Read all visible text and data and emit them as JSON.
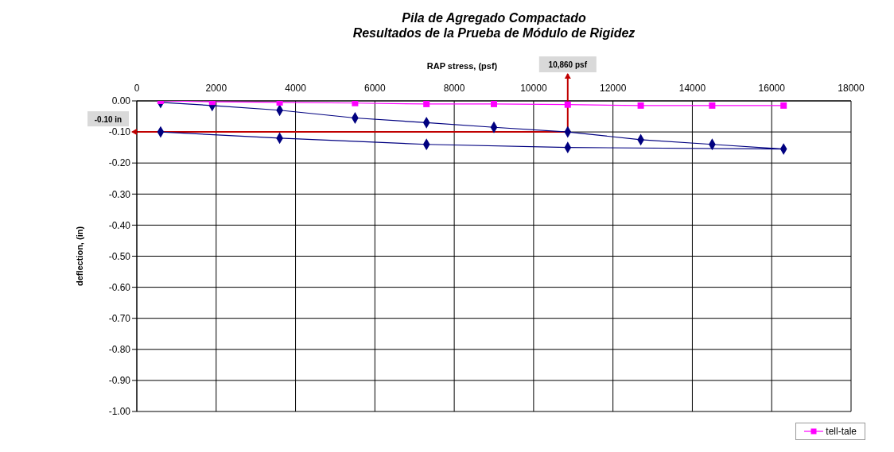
{
  "chart_data": {
    "type": "line",
    "title": "Pila de Agregado Compactado\nResultados de la Prueba de Módulo de Rigidez",
    "xlabel": "RAP stress, (psf)",
    "ylabel": "deflection, (in)",
    "series": [
      {
        "color": "#000080",
        "marker": "diamond",
        "x": [
          600,
          1900,
          3600,
          5500,
          7300,
          9000,
          10860,
          12700,
          14500,
          16300,
          10860,
          7300,
          3600,
          600
        ],
        "values": [
          -0.005,
          -0.015,
          -0.03,
          -0.055,
          -0.07,
          -0.085,
          -0.1,
          -0.125,
          -0.14,
          -0.155,
          -0.15,
          -0.14,
          -0.12,
          -0.1
        ]
      },
      {
        "name": "tell-tale",
        "color": "#ff00ff",
        "marker": "square",
        "x": [
          600,
          1900,
          3600,
          5500,
          7300,
          9000,
          10860,
          12700,
          14500,
          16300
        ],
        "values": [
          0,
          -0.003,
          -0.005,
          -0.007,
          -0.01,
          -0.01,
          -0.012,
          -0.015,
          -0.015,
          -0.015
        ]
      }
    ],
    "xlim": [
      0,
      18000
    ],
    "xticks": [
      0,
      2000,
      4000,
      6000,
      8000,
      10000,
      12000,
      14000,
      16000,
      18000
    ],
    "ylim": [
      -1,
      0
    ],
    "yticks": [
      {
        "value": 0,
        "label": "0.00"
      },
      {
        "value": -0.1,
        "label": "-0.10"
      },
      {
        "value": -0.2,
        "label": "-0.20"
      },
      {
        "value": -0.3,
        "label": "-0.30"
      },
      {
        "value": -0.4,
        "label": "-0.40"
      },
      {
        "value": -0.5,
        "label": "-0.50"
      },
      {
        "value": -0.6,
        "label": "-0.60"
      },
      {
        "value": -0.7,
        "label": "-0.70"
      },
      {
        "value": -0.8,
        "label": "-0.80"
      },
      {
        "value": -0.9,
        "label": "-0.90"
      },
      {
        "value": -1,
        "label": "-1.00"
      }
    ],
    "ref_lines": [
      {
        "axis": "y",
        "value": -0.1,
        "label": "-0.10 in",
        "color": "#c00000"
      },
      {
        "axis": "x",
        "value": 10860,
        "label": "10,860 psf",
        "color": "#c00000"
      }
    ],
    "grid": true,
    "legend": "bottom right"
  }
}
